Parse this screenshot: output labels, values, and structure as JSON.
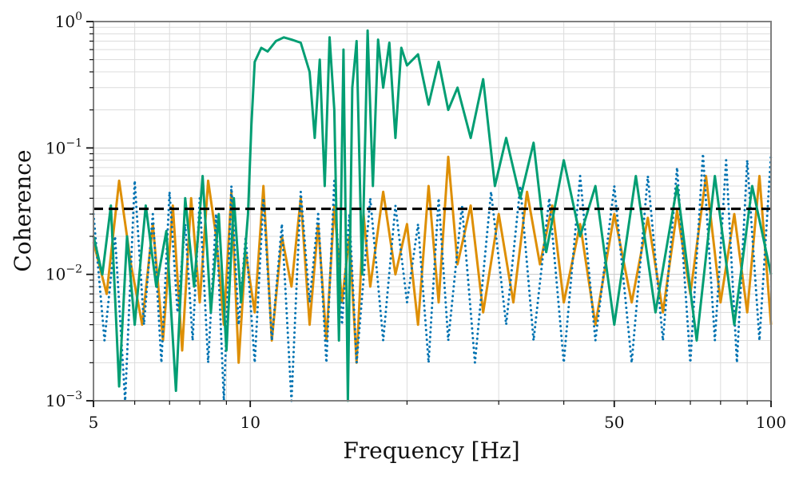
{
  "chart_data": {
    "type": "line",
    "xlabel": "Frequency [Hz]",
    "ylabel": "Coherence",
    "xscale": "log",
    "yscale": "log",
    "xlim": [
      5,
      100
    ],
    "ylim": [
      0.001,
      1
    ],
    "grid": true,
    "legend": "none",
    "x_ticks": [
      {
        "value": 5,
        "label": "5"
      },
      {
        "value": 10,
        "label": "10"
      },
      {
        "value": 50,
        "label": "50"
      },
      {
        "value": 100,
        "label": "100"
      }
    ],
    "y_ticks": [
      {
        "value": 0.001,
        "base": "10",
        "exp": "−3"
      },
      {
        "value": 0.01,
        "base": "10",
        "exp": "−2"
      },
      {
        "value": 0.1,
        "base": "10",
        "exp": "−1"
      },
      {
        "value": 1,
        "base": "10",
        "exp": "0"
      }
    ],
    "threshold": {
      "value": 0.033,
      "color": "#000000",
      "style": "dashed"
    },
    "series": [
      {
        "color": "#de8f05",
        "style": "solid",
        "x": [
          5.0,
          5.3,
          5.6,
          5.9,
          6.2,
          6.5,
          6.8,
          7.1,
          7.4,
          7.7,
          8.0,
          8.3,
          8.6,
          8.9,
          9.2,
          9.5,
          9.8,
          10.2,
          10.6,
          11.0,
          11.5,
          12.0,
          12.5,
          13.0,
          13.5,
          14.0,
          14.5,
          15.0,
          15.5,
          16.0,
          16.5,
          17.0,
          18.0,
          19.0,
          20.0,
          21.0,
          22.0,
          23.0,
          24.0,
          25.0,
          26.5,
          28.0,
          30.0,
          32.0,
          34.0,
          36.0,
          38.0,
          40.0,
          43.0,
          46.0,
          50.0,
          54.0,
          58.0,
          62.0,
          66.0,
          70.0,
          75.0,
          80.0,
          85.0,
          90.0,
          95.0,
          100.0
        ],
        "y": [
          0.018,
          0.007,
          0.055,
          0.012,
          0.004,
          0.025,
          0.003,
          0.035,
          0.0025,
          0.04,
          0.006,
          0.055,
          0.02,
          0.004,
          0.045,
          0.002,
          0.015,
          0.005,
          0.05,
          0.003,
          0.02,
          0.008,
          0.04,
          0.004,
          0.025,
          0.003,
          0.035,
          0.006,
          0.02,
          0.002,
          0.03,
          0.008,
          0.045,
          0.01,
          0.025,
          0.004,
          0.05,
          0.006,
          0.085,
          0.012,
          0.035,
          0.005,
          0.03,
          0.006,
          0.045,
          0.012,
          0.035,
          0.006,
          0.025,
          0.004,
          0.03,
          0.006,
          0.028,
          0.005,
          0.032,
          0.007,
          0.06,
          0.006,
          0.03,
          0.005,
          0.06,
          0.004
        ]
      },
      {
        "color": "#0173b2",
        "style": "dotted",
        "x": [
          5.0,
          5.25,
          5.5,
          5.75,
          6.0,
          6.25,
          6.5,
          6.75,
          7.0,
          7.25,
          7.5,
          7.75,
          8.0,
          8.3,
          8.6,
          8.9,
          9.2,
          9.5,
          9.8,
          10.2,
          10.6,
          11.0,
          11.5,
          12.0,
          12.5,
          13.0,
          13.5,
          14.0,
          14.5,
          15.0,
          15.5,
          16.0,
          17.0,
          18.0,
          19.0,
          20.0,
          21.0,
          22.0,
          23.0,
          24.0,
          25.5,
          27.0,
          29.0,
          31.0,
          33.0,
          35.0,
          37.5,
          40.0,
          43.0,
          46.0,
          50.0,
          54.0,
          58.0,
          62.0,
          66.0,
          70.0,
          74.0,
          78.0,
          82.0,
          86.0,
          90.0,
          95.0,
          100.0
        ],
        "y": [
          0.03,
          0.003,
          0.02,
          0.001,
          0.055,
          0.004,
          0.03,
          0.002,
          0.045,
          0.005,
          0.025,
          0.003,
          0.04,
          0.002,
          0.03,
          0.001,
          0.05,
          0.004,
          0.02,
          0.002,
          0.04,
          0.003,
          0.025,
          0.001,
          0.045,
          0.006,
          0.03,
          0.002,
          0.055,
          0.004,
          0.03,
          0.002,
          0.04,
          0.003,
          0.035,
          0.006,
          0.025,
          0.002,
          0.04,
          0.003,
          0.035,
          0.002,
          0.045,
          0.004,
          0.05,
          0.003,
          0.04,
          0.002,
          0.06,
          0.003,
          0.05,
          0.002,
          0.06,
          0.003,
          0.07,
          0.002,
          0.09,
          0.003,
          0.08,
          0.002,
          0.08,
          0.003,
          0.09
        ]
      },
      {
        "color": "#029e73",
        "style": "solid",
        "x": [
          5.0,
          5.2,
          5.4,
          5.6,
          5.8,
          6.0,
          6.3,
          6.6,
          6.9,
          7.2,
          7.5,
          7.8,
          8.1,
          8.4,
          8.7,
          9.0,
          9.3,
          9.6,
          9.9,
          10.05,
          10.2,
          10.5,
          10.8,
          11.2,
          11.6,
          12.0,
          12.5,
          13.0,
          13.3,
          13.6,
          13.9,
          14.2,
          14.5,
          14.8,
          15.1,
          15.4,
          15.7,
          16.0,
          16.4,
          16.8,
          17.2,
          17.6,
          18.0,
          18.5,
          19.0,
          19.5,
          20.0,
          21.0,
          22.0,
          23.0,
          24.0,
          25.0,
          26.5,
          28.0,
          29.5,
          31.0,
          33.0,
          35.0,
          37.0,
          40.0,
          43.0,
          46.0,
          50.0,
          55.0,
          60.0,
          66.0,
          72.0,
          78.0,
          85.0,
          92.0,
          100.0
        ],
        "y": [
          0.02,
          0.01,
          0.035,
          0.0013,
          0.02,
          0.004,
          0.035,
          0.008,
          0.022,
          0.0012,
          0.04,
          0.008,
          0.06,
          0.005,
          0.03,
          0.0025,
          0.04,
          0.006,
          0.03,
          0.15,
          0.48,
          0.62,
          0.58,
          0.7,
          0.75,
          0.72,
          0.68,
          0.4,
          0.12,
          0.5,
          0.05,
          0.75,
          0.2,
          0.003,
          0.6,
          0.001,
          0.3,
          0.7,
          0.01,
          0.85,
          0.05,
          0.72,
          0.3,
          0.68,
          0.12,
          0.62,
          0.45,
          0.55,
          0.22,
          0.48,
          0.2,
          0.3,
          0.12,
          0.35,
          0.05,
          0.12,
          0.04,
          0.11,
          0.015,
          0.08,
          0.02,
          0.05,
          0.004,
          0.06,
          0.005,
          0.05,
          0.003,
          0.06,
          0.004,
          0.05,
          0.01
        ]
      }
    ]
  }
}
